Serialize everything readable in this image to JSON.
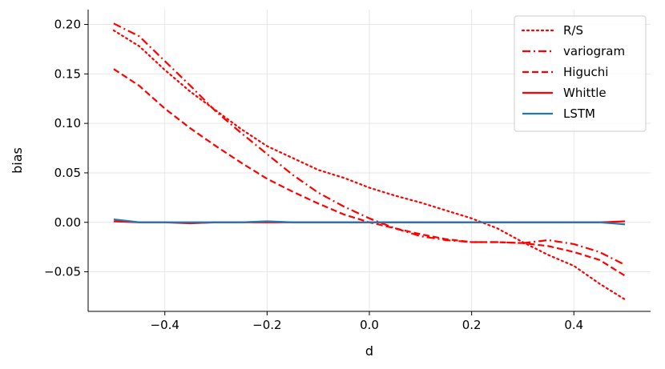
{
  "chart_data": {
    "type": "line",
    "title": "",
    "xlabel": "d",
    "ylabel": "bias",
    "xlim": [
      -0.55,
      0.55
    ],
    "ylim": [
      -0.09,
      0.215
    ],
    "grid": true,
    "legend_position": "top-right",
    "xticks": [
      -0.4,
      -0.2,
      0.0,
      0.2,
      0.4
    ],
    "xtick_labels": [
      "−0.4",
      "−0.2",
      "0.0",
      "0.2",
      "0.4"
    ],
    "yticks": [
      -0.05,
      0.0,
      0.05,
      0.1,
      0.15,
      0.2
    ],
    "ytick_labels": [
      "−0.05",
      "0.00",
      "0.05",
      "0.10",
      "0.15",
      "0.20"
    ],
    "colors": {
      "red": "#ff0000",
      "blue": "#1f77b4",
      "grid": "#e6e6e6",
      "legend_border": "#cccccc"
    },
    "x": [
      -0.5,
      -0.45,
      -0.4,
      -0.35,
      -0.3,
      -0.25,
      -0.2,
      -0.15,
      -0.1,
      -0.05,
      0.0,
      0.05,
      0.1,
      0.15,
      0.2,
      0.25,
      0.3,
      0.35,
      0.4,
      0.45,
      0.5
    ],
    "series": [
      {
        "name": "R/S",
        "color": "#ff0000",
        "dash": "dotted",
        "values": [
          0.194,
          0.178,
          0.154,
          0.132,
          0.113,
          0.094,
          0.077,
          0.065,
          0.053,
          0.045,
          0.035,
          0.027,
          0.02,
          0.012,
          0.004,
          -0.006,
          -0.02,
          -0.033,
          -0.044,
          -0.062,
          -0.078
        ]
      },
      {
        "name": "variogram",
        "color": "#ff0000",
        "dash": "dashdot",
        "values": [
          0.201,
          0.188,
          0.163,
          0.138,
          0.112,
          0.09,
          0.069,
          0.048,
          0.03,
          0.016,
          0.004,
          -0.006,
          -0.014,
          -0.018,
          -0.02,
          -0.02,
          -0.021,
          -0.018,
          -0.022,
          -0.03,
          -0.043
        ]
      },
      {
        "name": "Higuchi",
        "color": "#ff0000",
        "dash": "dashed",
        "values": [
          0.155,
          0.138,
          0.115,
          0.095,
          0.077,
          0.06,
          0.044,
          0.031,
          0.019,
          0.008,
          0.0,
          -0.006,
          -0.012,
          -0.017,
          -0.02,
          -0.02,
          -0.021,
          -0.024,
          -0.03,
          -0.038,
          -0.054
        ]
      },
      {
        "name": "Whittle",
        "color": "#ff0000",
        "dash": "solid",
        "values": [
          0.001,
          0.0,
          0.0,
          -0.001,
          0.0,
          0.0,
          0.0,
          0.0,
          0.0,
          0.0,
          0.0,
          0.0,
          0.0,
          0.0,
          0.0,
          0.0,
          0.0,
          0.0,
          0.0,
          0.0,
          0.001
        ]
      },
      {
        "name": "LSTM",
        "color": "#1f77b4",
        "dash": "solid",
        "values": [
          0.003,
          0.0,
          0.0,
          0.0,
          0.0,
          0.0,
          0.001,
          0.0,
          0.0,
          0.0,
          0.0,
          0.0,
          0.0,
          0.0,
          0.0,
          0.0,
          0.0,
          0.0,
          0.0,
          0.0,
          -0.002
        ]
      }
    ]
  }
}
